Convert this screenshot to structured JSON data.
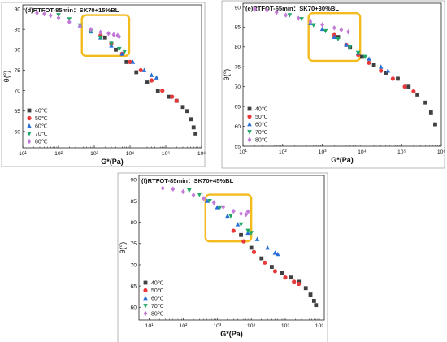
{
  "chart_data": [
    {
      "type": "scatter",
      "id": "d",
      "title": "(d)RTFOT-85min：SK70+15%BL",
      "xlabel": "G*(Pa)",
      "ylabel": "θ(°)",
      "xscale": "log",
      "xlim": [
        10,
        1000000
      ],
      "ylim": [
        56,
        91
      ],
      "x_ticks": [
        "10¹",
        "10²",
        "10³",
        "10⁴",
        "10⁵",
        "10⁶"
      ],
      "y_ticks": [
        60,
        65,
        70,
        75,
        80,
        85,
        90
      ],
      "legend_position": "bottom-left",
      "highlight_box": {
        "x": [
          450,
          9500
        ],
        "y": [
          78.5,
          88.5
        ]
      },
      "series": [
        {
          "name": "40℃",
          "marker": "square",
          "color": "#404040",
          "points": [
            [
              2000,
              83
            ],
            [
              4000,
              80
            ],
            [
              8000,
              77
            ],
            [
              15000,
              74.5
            ],
            [
              30000,
              72
            ],
            [
              60000,
              70
            ],
            [
              120000,
              68.5
            ],
            [
              200000,
              67.5
            ],
            [
              300000,
              66
            ],
            [
              400000,
              65
            ],
            [
              500000,
              63
            ],
            [
              600000,
              61
            ],
            [
              680000,
              59.5
            ]
          ]
        },
        {
          "name": "50℃",
          "marker": "circle",
          "color": "#e8393a",
          "points": [
            [
              1500,
              83.5
            ],
            [
              3000,
              81.5
            ],
            [
              6000,
              79
            ],
            [
              10000,
              77
            ],
            [
              20000,
              75
            ],
            [
              40000,
              72.5
            ],
            [
              80000,
              70
            ],
            [
              150000,
              68.5
            ],
            [
              200000,
              67.5
            ]
          ]
        },
        {
          "name": "60℃",
          "marker": "triangle-up",
          "color": "#2a6fd6",
          "points": [
            [
              400,
              86
            ],
            [
              800,
              84.5
            ],
            [
              1500,
              83
            ],
            [
              3000,
              81
            ],
            [
              6000,
              79
            ],
            [
              12000,
              77
            ],
            [
              25000,
              75
            ],
            [
              40000,
              73.8
            ],
            [
              55000,
              73.2
            ]
          ]
        },
        {
          "name": "70℃",
          "marker": "triangle-down",
          "color": "#1fa765",
          "points": [
            [
              100,
              88.5
            ],
            [
              200,
              87.5
            ],
            [
              400,
              86
            ],
            [
              800,
              84.5
            ],
            [
              1500,
              83
            ],
            [
              3000,
              81.5
            ],
            [
              5000,
              80.2
            ],
            [
              7000,
              79.5
            ]
          ]
        },
        {
          "name": "80℃",
          "marker": "diamond",
          "color": "#c27ad8",
          "points": [
            [
              25,
              89
            ],
            [
              40,
              88.8
            ],
            [
              60,
              88.4
            ],
            [
              100,
              87.8
            ],
            [
              200,
              86.8
            ],
            [
              400,
              85.8
            ],
            [
              800,
              85
            ],
            [
              1500,
              84.3
            ],
            [
              2500,
              84
            ],
            [
              3500,
              83.7
            ],
            [
              4500,
              83.5
            ],
            [
              5000,
              83.2
            ]
          ]
        }
      ]
    },
    {
      "type": "scatter",
      "id": "e",
      "title": "(e)RTFOT-65min：SK70+30%BL",
      "xlabel": "G*(Pa)",
      "ylabel": "θ(°)",
      "xscale": "log",
      "xlim": [
        10,
        1000000
      ],
      "ylim": [
        55,
        91
      ],
      "x_ticks": [
        "10¹",
        "10²",
        "10³",
        "10⁴",
        "10⁵",
        "10⁶"
      ],
      "y_ticks": [
        55,
        60,
        65,
        70,
        75,
        80,
        85,
        90
      ],
      "legend_position": "bottom-left",
      "highlight_box": {
        "x": [
          450,
          9000
        ],
        "y": [
          76.5,
          88.5
        ]
      },
      "series": [
        {
          "name": "40℃",
          "marker": "square",
          "color": "#404040",
          "points": [
            [
              2500,
              82.5
            ],
            [
              5000,
              80
            ],
            [
              10000,
              77.5
            ],
            [
              20000,
              75.5
            ],
            [
              40000,
              73.5
            ],
            [
              80000,
              72
            ],
            [
              150000,
              70
            ],
            [
              250000,
              68
            ],
            [
              400000,
              66
            ],
            [
              550000,
              63.5
            ],
            [
              700000,
              60.5
            ]
          ]
        },
        {
          "name": "50℃",
          "marker": "circle",
          "color": "#e8393a",
          "points": [
            [
              2000,
              83
            ],
            [
              4000,
              80.5
            ],
            [
              8000,
              78
            ],
            [
              15000,
              76
            ],
            [
              30000,
              74
            ],
            [
              60000,
              72
            ],
            [
              120000,
              70
            ],
            [
              200000,
              68.8
            ]
          ]
        },
        {
          "name": "60℃",
          "marker": "triangle-up",
          "color": "#2a6fd6",
          "points": [
            [
              500,
              86
            ],
            [
              1000,
              84.5
            ],
            [
              2000,
              82.5
            ],
            [
              4000,
              80.5
            ],
            [
              8000,
              78.5
            ],
            [
              15000,
              77
            ],
            [
              30000,
              75
            ],
            [
              45000,
              74
            ]
          ]
        },
        {
          "name": "70℃",
          "marker": "triangle-down",
          "color": "#1fa765",
          "points": [
            [
              150,
              88
            ],
            [
              300,
              87
            ],
            [
              600,
              85.5
            ],
            [
              1200,
              84
            ],
            [
              2500,
              82
            ],
            [
              5000,
              80
            ],
            [
              8000,
              78.5
            ],
            [
              12000,
              77.5
            ]
          ]
        },
        {
          "name": "80℃",
          "marker": "diamond",
          "color": "#c27ad8",
          "points": [
            [
              20,
              89.5
            ],
            [
              40,
              89.2
            ],
            [
              70,
              88.7
            ],
            [
              120,
              88
            ],
            [
              250,
              87.2
            ],
            [
              500,
              86.4
            ],
            [
              1000,
              85.6
            ],
            [
              2000,
              84.8
            ],
            [
              3000,
              84.3
            ],
            [
              4500,
              83.8
            ]
          ]
        }
      ]
    },
    {
      "type": "scatter",
      "id": "f",
      "title": "(f)RTFOT-85min：SK70+45%BL",
      "xlabel": "G*(Pa)",
      "ylabel": "θ(°)",
      "xscale": "log",
      "xlim": [
        5,
        1400000
      ],
      "ylim": [
        57,
        91
      ],
      "x_ticks": [
        "10¹",
        "10²",
        "10³",
        "10⁴",
        "10⁵",
        "10⁶"
      ],
      "y_ticks": [
        60,
        65,
        70,
        75,
        80,
        85,
        90
      ],
      "legend_position": "bottom-left",
      "highlight_box": {
        "x": [
          450,
          10000
        ],
        "y": [
          75.5,
          86.5
        ]
      },
      "series": [
        {
          "name": "40℃",
          "marker": "square",
          "color": "#404040",
          "points": [
            [
              5000,
              77
            ],
            [
              10000,
              74
            ],
            [
              20000,
              71.5
            ],
            [
              40000,
              69.5
            ],
            [
              80000,
              68
            ],
            [
              150000,
              67
            ],
            [
              250000,
              66
            ],
            [
              400000,
              64.5
            ],
            [
              550000,
              63
            ],
            [
              700000,
              61.5
            ],
            [
              800000,
              60.5
            ]
          ]
        },
        {
          "name": "50℃",
          "marker": "circle",
          "color": "#e8393a",
          "points": [
            [
              3000,
              78
            ],
            [
              6000,
              75.5
            ],
            [
              12000,
              73
            ],
            [
              25000,
              70.5
            ],
            [
              50000,
              68.5
            ],
            [
              100000,
              67
            ],
            [
              180000,
              66
            ],
            [
              250000,
              65.5
            ]
          ]
        },
        {
          "name": "60℃",
          "marker": "triangle-up",
          "color": "#2a6fd6",
          "points": [
            [
              500,
              85
            ],
            [
              1000,
              83.5
            ],
            [
              2000,
              81.5
            ],
            [
              4000,
              79.5
            ],
            [
              8000,
              77.5
            ],
            [
              15000,
              76
            ],
            [
              30000,
              74
            ],
            [
              50000,
              72.8
            ],
            [
              60000,
              72.5
            ]
          ]
        },
        {
          "name": "70℃",
          "marker": "triangle-down",
          "color": "#1fa765",
          "points": [
            [
              150,
              87.5
            ],
            [
              300,
              86.5
            ],
            [
              600,
              85
            ],
            [
              1200,
              83.5
            ],
            [
              2500,
              81.5
            ],
            [
              5000,
              79.5
            ],
            [
              8000,
              78
            ],
            [
              10000,
              77.5
            ]
          ]
        },
        {
          "name": "80℃",
          "marker": "diamond",
          "color": "#c27ad8",
          "points": [
            [
              25,
              88
            ],
            [
              50,
              87.8
            ],
            [
              100,
              87.2
            ],
            [
              200,
              86.4
            ],
            [
              400,
              85.6
            ],
            [
              800,
              84.6
            ],
            [
              1500,
              83.6
            ],
            [
              3000,
              82.6
            ],
            [
              5000,
              82
            ],
            [
              7000,
              81.8
            ],
            [
              8000,
              82.5
            ]
          ]
        }
      ]
    }
  ]
}
